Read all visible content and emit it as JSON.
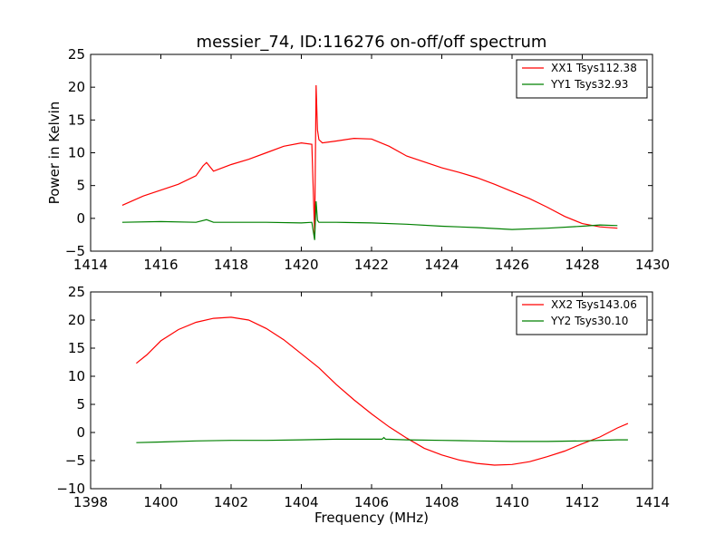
{
  "chart_data": [
    {
      "type": "line",
      "title": "messier_74, ID:116276 on-off/off spectrum",
      "xlabel": "",
      "ylabel": "Power in Kelvin",
      "xlim": [
        1414,
        1430
      ],
      "ylim": [
        -5,
        25
      ],
      "xticks": [
        1414,
        1416,
        1418,
        1420,
        1422,
        1424,
        1426,
        1428,
        1430
      ],
      "yticks": [
        -5,
        0,
        5,
        10,
        15,
        20,
        25
      ],
      "legend_position": "top-right",
      "grid": false,
      "series": [
        {
          "name": "XX1 Tsys112.38",
          "color": "#ff0000",
          "x": [
            1414.9,
            1415.5,
            1416.0,
            1416.5,
            1417.0,
            1417.2,
            1417.3,
            1417.5,
            1418.0,
            1418.5,
            1419.0,
            1419.5,
            1420.0,
            1420.3,
            1420.38,
            1420.42,
            1420.46,
            1420.5,
            1420.6,
            1421.0,
            1421.5,
            1422.0,
            1422.5,
            1423.0,
            1423.5,
            1424.0,
            1424.5,
            1425.0,
            1425.5,
            1426.0,
            1426.5,
            1427.0,
            1427.5,
            1428.0,
            1428.5,
            1429.0
          ],
          "y": [
            2.0,
            3.4,
            4.3,
            5.2,
            6.5,
            8.0,
            8.5,
            7.2,
            8.2,
            9.0,
            10.0,
            11.0,
            11.5,
            11.3,
            -2.5,
            20.3,
            13.5,
            12.0,
            11.5,
            11.8,
            12.2,
            12.1,
            11.0,
            9.5,
            8.6,
            7.7,
            7.0,
            6.2,
            5.2,
            4.1,
            3.0,
            1.7,
            0.3,
            -0.8,
            -1.3,
            -1.5
          ]
        },
        {
          "name": "YY1 Tsys32.93",
          "color": "#008000",
          "x": [
            1414.9,
            1416.0,
            1417.0,
            1417.3,
            1417.5,
            1418.0,
            1419.0,
            1420.0,
            1420.3,
            1420.38,
            1420.42,
            1420.46,
            1420.5,
            1421.0,
            1422.0,
            1423.0,
            1424.0,
            1425.0,
            1426.0,
            1427.0,
            1428.0,
            1428.5,
            1429.0
          ],
          "y": [
            -0.6,
            -0.5,
            -0.6,
            -0.2,
            -0.6,
            -0.6,
            -0.6,
            -0.7,
            -0.6,
            -3.3,
            2.6,
            -0.3,
            -0.6,
            -0.6,
            -0.7,
            -0.9,
            -1.2,
            -1.4,
            -1.7,
            -1.5,
            -1.2,
            -1.0,
            -1.1
          ]
        }
      ]
    },
    {
      "type": "line",
      "title": "",
      "xlabel": "Frequency (MHz)",
      "ylabel": "",
      "xlim": [
        1398,
        1414
      ],
      "ylim": [
        -10,
        25
      ],
      "xticks": [
        1398,
        1400,
        1402,
        1404,
        1406,
        1408,
        1410,
        1412,
        1414
      ],
      "yticks": [
        -10,
        -5,
        0,
        5,
        10,
        15,
        20,
        25
      ],
      "legend_position": "top-right",
      "grid": false,
      "series": [
        {
          "name": "XX2 Tsys143.06",
          "color": "#ff0000",
          "x": [
            1399.3,
            1399.6,
            1400.0,
            1400.5,
            1401.0,
            1401.5,
            1402.0,
            1402.5,
            1403.0,
            1403.5,
            1404.0,
            1404.5,
            1405.0,
            1405.5,
            1406.0,
            1406.5,
            1407.0,
            1407.5,
            1408.0,
            1408.5,
            1409.0,
            1409.5,
            1410.0,
            1410.5,
            1411.0,
            1411.5,
            1412.0,
            1412.5,
            1413.0,
            1413.3
          ],
          "y": [
            12.3,
            13.8,
            16.3,
            18.3,
            19.6,
            20.3,
            20.5,
            20.0,
            18.5,
            16.5,
            14.0,
            11.5,
            8.5,
            5.8,
            3.3,
            1.0,
            -1.0,
            -2.8,
            -4.0,
            -4.9,
            -5.5,
            -5.8,
            -5.7,
            -5.2,
            -4.3,
            -3.3,
            -2.0,
            -0.8,
            0.8,
            1.6
          ]
        },
        {
          "name": "YY2 Tsys30.10",
          "color": "#008000",
          "x": [
            1399.3,
            1400.0,
            1401.0,
            1402.0,
            1403.0,
            1404.0,
            1405.0,
            1406.0,
            1406.3,
            1406.35,
            1406.4,
            1407.0,
            1408.0,
            1409.0,
            1410.0,
            1411.0,
            1412.0,
            1413.0,
            1413.3
          ],
          "y": [
            -1.8,
            -1.7,
            -1.5,
            -1.4,
            -1.4,
            -1.3,
            -1.2,
            -1.2,
            -1.2,
            -0.9,
            -1.2,
            -1.3,
            -1.4,
            -1.5,
            -1.6,
            -1.6,
            -1.5,
            -1.3,
            -1.3
          ]
        }
      ]
    }
  ]
}
